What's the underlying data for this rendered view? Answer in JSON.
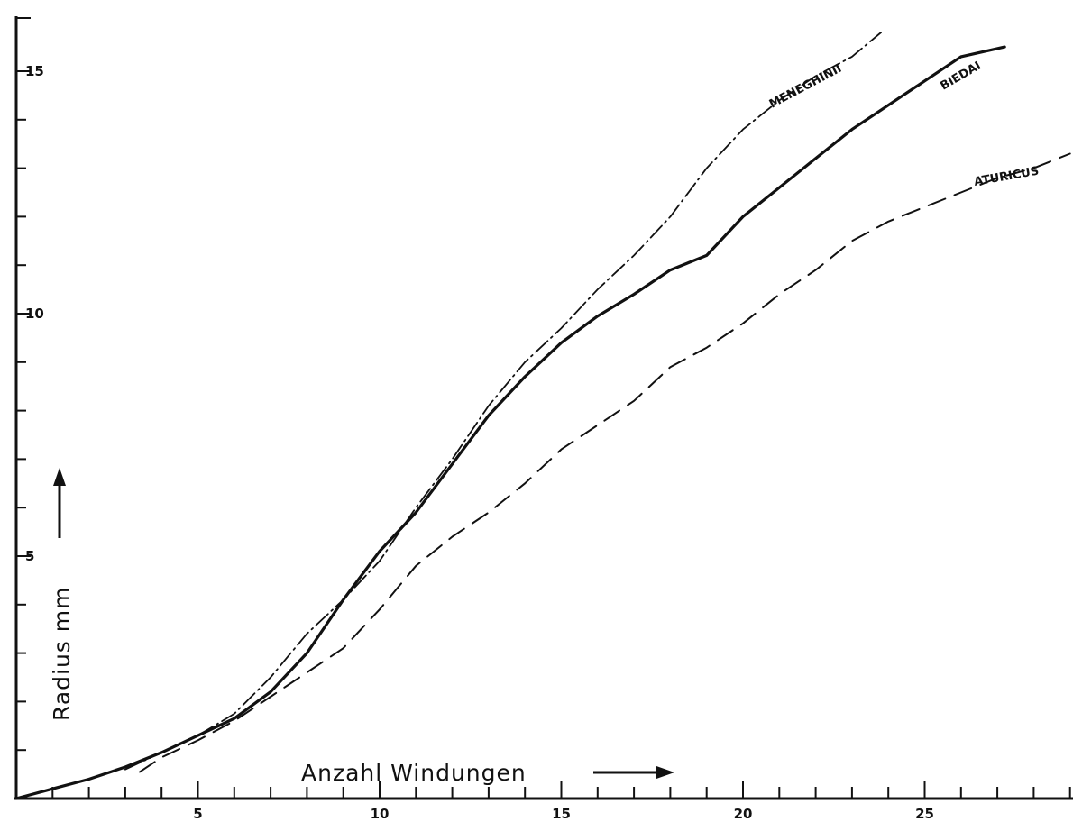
{
  "chart_data": {
    "type": "line",
    "xlabel": "Anzahl Windungen",
    "ylabel": "Radius mm",
    "xlim": [
      0,
      29
    ],
    "ylim": [
      0,
      16
    ],
    "x_ticks": [
      5,
      10,
      15,
      20,
      25
    ],
    "y_ticks": [
      5,
      10,
      15
    ],
    "grid": false,
    "legend": "labels placed at the end of each curve",
    "series": [
      {
        "name": "BIEDAI",
        "style": "solid",
        "x": [
          0,
          1,
          2,
          3,
          4,
          5,
          6,
          7,
          8,
          9,
          10,
          11,
          12,
          13,
          14,
          15,
          16,
          17,
          18,
          19,
          20,
          21,
          22,
          23,
          24,
          25,
          26,
          27.2
        ],
        "y": [
          0,
          0.2,
          0.4,
          0.65,
          0.95,
          1.3,
          1.65,
          2.2,
          3.0,
          4.1,
          5.1,
          5.9,
          6.9,
          7.9,
          8.7,
          9.4,
          9.95,
          10.4,
          10.9,
          11.2,
          12.0,
          12.6,
          13.2,
          13.8,
          14.3,
          14.8,
          15.3,
          15.5
        ]
      },
      {
        "name": "MENEGHINII",
        "style": "dash-dot",
        "x": [
          3,
          4,
          5,
          6,
          7,
          8,
          9,
          10,
          11,
          12,
          13,
          14,
          15,
          16,
          17,
          18,
          19,
          20,
          21,
          22,
          23,
          23.8
        ],
        "y": [
          0.6,
          0.95,
          1.3,
          1.75,
          2.5,
          3.4,
          4.1,
          4.9,
          6.0,
          7.0,
          8.1,
          9.0,
          9.7,
          10.5,
          11.2,
          12.0,
          13.0,
          13.8,
          14.4,
          14.9,
          15.3,
          15.8
        ]
      },
      {
        "name": "ATURICUS",
        "style": "dashed",
        "x": [
          3.4,
          4,
          5,
          6,
          7,
          8,
          9,
          10,
          11,
          12,
          13,
          14,
          15,
          16,
          17,
          18,
          19,
          20,
          21,
          22,
          23,
          24,
          25,
          26,
          27,
          28,
          29
        ],
        "y": [
          0.55,
          0.85,
          1.2,
          1.6,
          2.1,
          2.6,
          3.1,
          3.9,
          4.8,
          5.4,
          5.9,
          6.5,
          7.2,
          7.7,
          8.2,
          8.9,
          9.3,
          9.8,
          10.4,
          10.9,
          11.5,
          11.9,
          12.2,
          12.5,
          12.8,
          13.0,
          13.3
        ]
      }
    ]
  }
}
